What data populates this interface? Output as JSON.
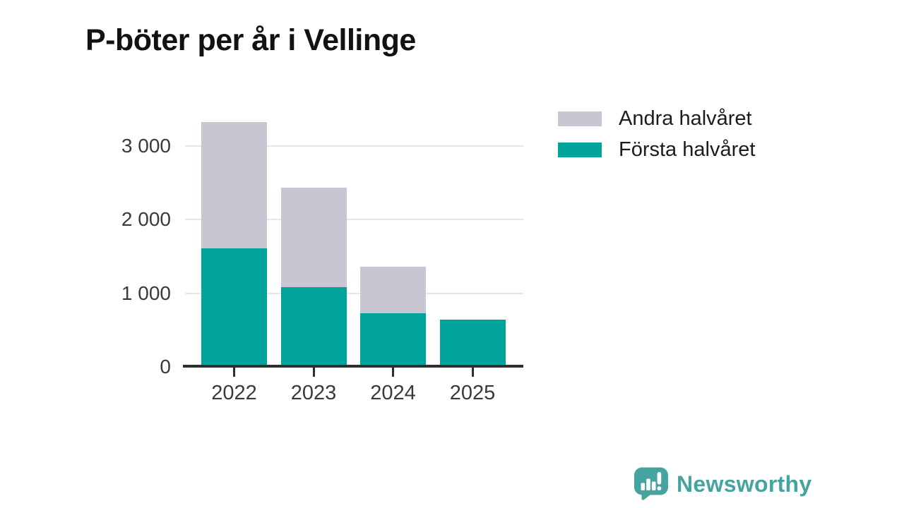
{
  "title": "P-böter per år i Vellinge",
  "legend": [
    {
      "label": "Andra halvåret",
      "color": "#c9c5d2"
    },
    {
      "label": "Första halvåret",
      "color": "#00a49b"
    }
  ],
  "brand": {
    "logo_text": "Newsworthy",
    "logo_color": "#45a3a0",
    "logo_icon": "bar-chart-speech-bubble-icon"
  },
  "chart_data": {
    "type": "bar",
    "stacked": true,
    "title": "P-böter per år i Vellinge",
    "categories": [
      "2022",
      "2023",
      "2024",
      "2025"
    ],
    "series": [
      {
        "name": "Första halvåret",
        "color": "#00a49b",
        "values": [
          1610,
          1080,
          730,
          645
        ]
      },
      {
        "name": "Andra halvåret",
        "color": "#c9c5d2",
        "values": [
          1720,
          1355,
          630,
          0
        ]
      }
    ],
    "totals": [
      3330,
      2435,
      1360,
      645
    ],
    "ylim": [
      0,
      3350
    ],
    "yticks": [
      {
        "value": 0,
        "label": "0"
      },
      {
        "value": 1000,
        "label": "1 000"
      },
      {
        "value": 2000,
        "label": "2 000"
      },
      {
        "value": 3000,
        "label": "3 000"
      }
    ],
    "grid": "horizontal",
    "legend_position": "top-right"
  }
}
